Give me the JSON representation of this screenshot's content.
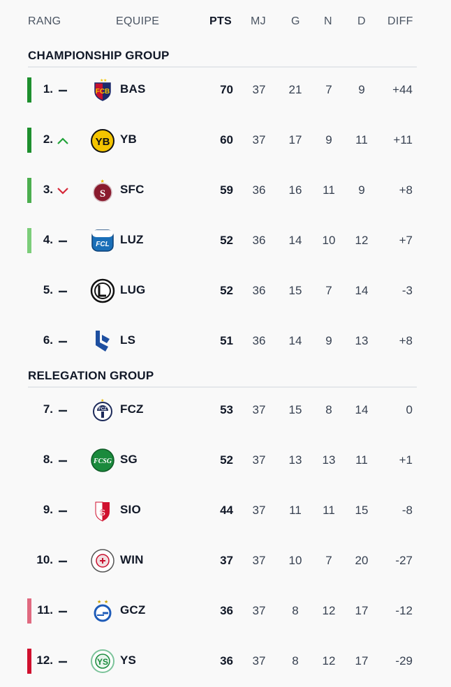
{
  "header": {
    "rank": "RANG",
    "team": "EQUIPE",
    "pts": "PTS",
    "mj": "MJ",
    "g": "G",
    "n": "N",
    "d": "D",
    "diff": "DIFF"
  },
  "groups": [
    {
      "title": "CHAMPIONSHIP GROUP",
      "rows": [
        {
          "rank": "1.",
          "trend": "same",
          "team": "BAS",
          "pts": "70",
          "mj": "37",
          "g": "21",
          "n": "7",
          "d": "9",
          "diff": "+44",
          "bar": "#1e8f2e"
        },
        {
          "rank": "2.",
          "trend": "up",
          "team": "YB",
          "pts": "60",
          "mj": "37",
          "g": "17",
          "n": "9",
          "d": "11",
          "diff": "+11",
          "bar": "#1e8f2e"
        },
        {
          "rank": "3.",
          "trend": "down",
          "team": "SFC",
          "pts": "59",
          "mj": "36",
          "g": "16",
          "n": "11",
          "d": "9",
          "diff": "+8",
          "bar": "#4cae4f"
        },
        {
          "rank": "4.",
          "trend": "same",
          "team": "LUZ",
          "pts": "52",
          "mj": "36",
          "g": "14",
          "n": "10",
          "d": "12",
          "diff": "+7",
          "bar": "#7ccd7a"
        },
        {
          "rank": "5.",
          "trend": "same",
          "team": "LUG",
          "pts": "52",
          "mj": "36",
          "g": "15",
          "n": "7",
          "d": "14",
          "diff": "-3",
          "bar": ""
        },
        {
          "rank": "6.",
          "trend": "same",
          "team": "LS",
          "pts": "51",
          "mj": "36",
          "g": "14",
          "n": "9",
          "d": "13",
          "diff": "+8",
          "bar": ""
        }
      ]
    },
    {
      "title": "RELEGATION GROUP",
      "rows": [
        {
          "rank": "7.",
          "trend": "same",
          "team": "FCZ",
          "pts": "53",
          "mj": "37",
          "g": "15",
          "n": "8",
          "d": "14",
          "diff": "0",
          "bar": ""
        },
        {
          "rank": "8.",
          "trend": "same",
          "team": "SG",
          "pts": "52",
          "mj": "37",
          "g": "13",
          "n": "13",
          "d": "11",
          "diff": "+1",
          "bar": ""
        },
        {
          "rank": "9.",
          "trend": "same",
          "team": "SIO",
          "pts": "44",
          "mj": "37",
          "g": "11",
          "n": "11",
          "d": "15",
          "diff": "-8",
          "bar": ""
        },
        {
          "rank": "10.",
          "trend": "same",
          "team": "WIN",
          "pts": "37",
          "mj": "37",
          "g": "10",
          "n": "7",
          "d": "20",
          "diff": "-27",
          "bar": ""
        },
        {
          "rank": "11.",
          "trend": "same",
          "team": "GCZ",
          "pts": "36",
          "mj": "37",
          "g": "8",
          "n": "12",
          "d": "17",
          "diff": "-12",
          "bar": "#e06a80"
        },
        {
          "rank": "12.",
          "trend": "same",
          "team": "YS",
          "pts": "36",
          "mj": "37",
          "g": "8",
          "n": "12",
          "d": "17",
          "diff": "-29",
          "bar": "#d0102e"
        }
      ]
    }
  ],
  "colors": {
    "trend_up": "#22a33a",
    "trend_down": "#d62839",
    "trend_same": "#1f2937"
  }
}
